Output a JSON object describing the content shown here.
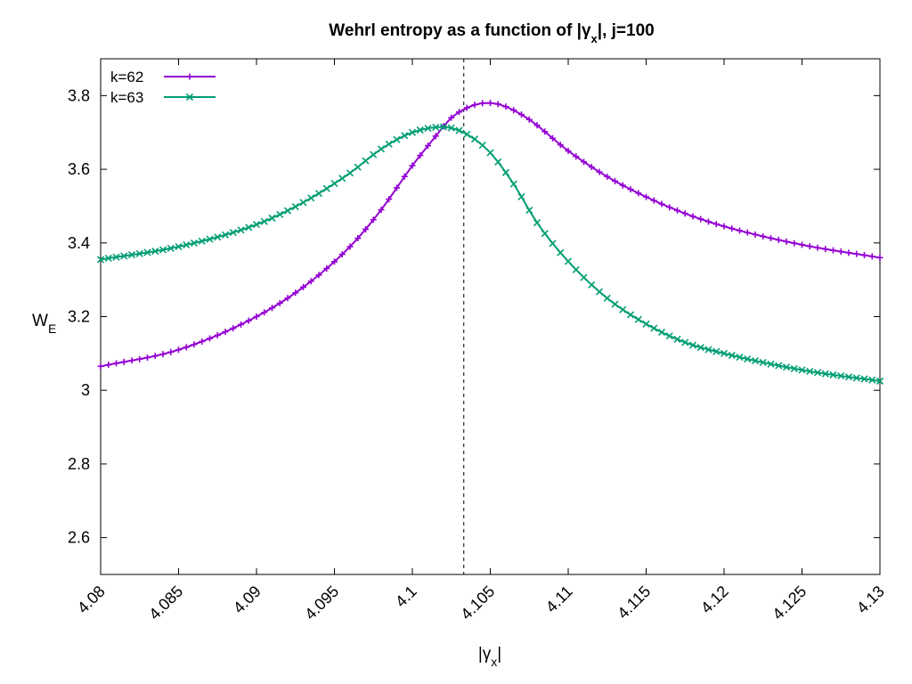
{
  "chart_data": {
    "type": "line",
    "title": {
      "prefix": "Wehrl entropy as a function of |",
      "symbol": "γ",
      "subscript": "x",
      "suffix": "|,  j=100"
    },
    "xlabel": {
      "prefix": "|",
      "symbol": "γ",
      "subscript": "x",
      "suffix": "|"
    },
    "ylabel": {
      "main": "W",
      "subscript": "E"
    },
    "xlim": [
      4.08,
      4.13
    ],
    "ylim": [
      2.5,
      3.9
    ],
    "xticks": [
      4.08,
      4.085,
      4.09,
      4.095,
      4.1,
      4.105,
      4.11,
      4.115,
      4.12,
      4.125,
      4.13
    ],
    "xtick_labels": [
      "4.08",
      "4.085",
      "4.09",
      "4.095",
      "4.1",
      "4.105",
      "4.11",
      "4.115",
      "4.12",
      "4.125",
      "4.13"
    ],
    "yticks": [
      2.6,
      2.8,
      3.0,
      3.2,
      3.4,
      3.6,
      3.8
    ],
    "ytick_labels": [
      "2.6",
      "2.8",
      "3",
      "3.2",
      "3.4",
      "3.6",
      "3.8"
    ],
    "vertical_line": {
      "x": 4.1033,
      "style": "dashed"
    },
    "legend_position": "top-left",
    "series": [
      {
        "name": "k=62",
        "color": "#9400d3",
        "marker": "plus",
        "key_points": [
          [
            4.08,
            3.065
          ],
          [
            4.085,
            3.11
          ],
          [
            4.09,
            3.2
          ],
          [
            4.093,
            3.28
          ],
          [
            4.096,
            3.39
          ],
          [
            4.098,
            3.49
          ],
          [
            4.1,
            3.61
          ],
          [
            4.1015,
            3.69
          ],
          [
            4.1025,
            3.74
          ],
          [
            4.104,
            3.775
          ],
          [
            4.105,
            3.78
          ],
          [
            4.106,
            3.77
          ],
          [
            4.1075,
            3.735
          ],
          [
            4.11,
            3.65
          ],
          [
            4.1125,
            3.58
          ],
          [
            4.115,
            3.525
          ],
          [
            4.1175,
            3.48
          ],
          [
            4.12,
            3.445
          ],
          [
            4.125,
            3.395
          ],
          [
            4.13,
            3.36
          ]
        ]
      },
      {
        "name": "k=63",
        "color": "#009e73",
        "marker": "cross",
        "key_points": [
          [
            4.08,
            3.355
          ],
          [
            4.085,
            3.39
          ],
          [
            4.09,
            3.45
          ],
          [
            4.093,
            3.51
          ],
          [
            4.096,
            3.59
          ],
          [
            4.098,
            3.655
          ],
          [
            4.1,
            3.7
          ],
          [
            4.102,
            3.715
          ],
          [
            4.1035,
            3.695
          ],
          [
            4.105,
            3.645
          ],
          [
            4.1065,
            3.56
          ],
          [
            4.108,
            3.455
          ],
          [
            4.11,
            3.35
          ],
          [
            4.1125,
            3.25
          ],
          [
            4.115,
            3.18
          ],
          [
            4.1175,
            3.13
          ],
          [
            4.12,
            3.1
          ],
          [
            4.125,
            3.055
          ],
          [
            4.13,
            3.025
          ]
        ]
      }
    ]
  }
}
